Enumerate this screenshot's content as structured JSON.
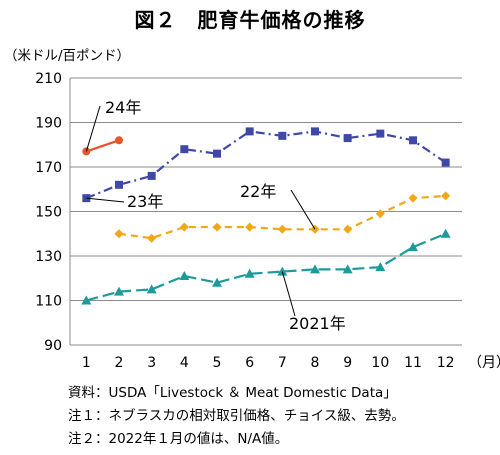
{
  "title": "図２　肥育牛価格の推移",
  "chart_data": {
    "type": "line",
    "ylabel": "（米ドル/百ポンド）",
    "xlabel": "（月）",
    "ylim": [
      90,
      210
    ],
    "yticks": [
      90,
      110,
      130,
      150,
      170,
      190,
      210
    ],
    "categories": [
      "1",
      "2",
      "3",
      "4",
      "5",
      "6",
      "7",
      "8",
      "9",
      "10",
      "11",
      "12"
    ],
    "grid": "horizontal",
    "series": [
      {
        "name": "24年",
        "color": "#e8532a",
        "marker": "circle",
        "dash": "solid",
        "values": [
          177,
          182,
          null,
          null,
          null,
          null,
          null,
          null,
          null,
          null,
          null,
          null
        ]
      },
      {
        "name": "23年",
        "color": "#3f48a8",
        "marker": "square",
        "dash": "dash-dot",
        "values": [
          156,
          162,
          166,
          178,
          176,
          186,
          184,
          186,
          183,
          185,
          182,
          172
        ]
      },
      {
        "name": "22年",
        "color": "#f0a818",
        "marker": "diamond",
        "dash": "dash",
        "values": [
          null,
          140,
          138,
          143,
          143,
          143,
          142,
          142,
          142,
          149,
          156,
          157
        ]
      },
      {
        "name": "2021年",
        "color": "#1d9a9a",
        "marker": "triangle",
        "dash": "long-dash",
        "values": [
          110,
          114,
          115,
          121,
          118,
          122,
          123,
          124,
          124,
          125,
          134,
          140
        ]
      }
    ]
  },
  "notes": [
    "資料：USDA「Livestock ＆ Meat Domestic Data」",
    "注１：ネブラスカの相対取引価格、チョイス級、去勢。",
    "注２：2022年１月の値は、N/A値。"
  ]
}
